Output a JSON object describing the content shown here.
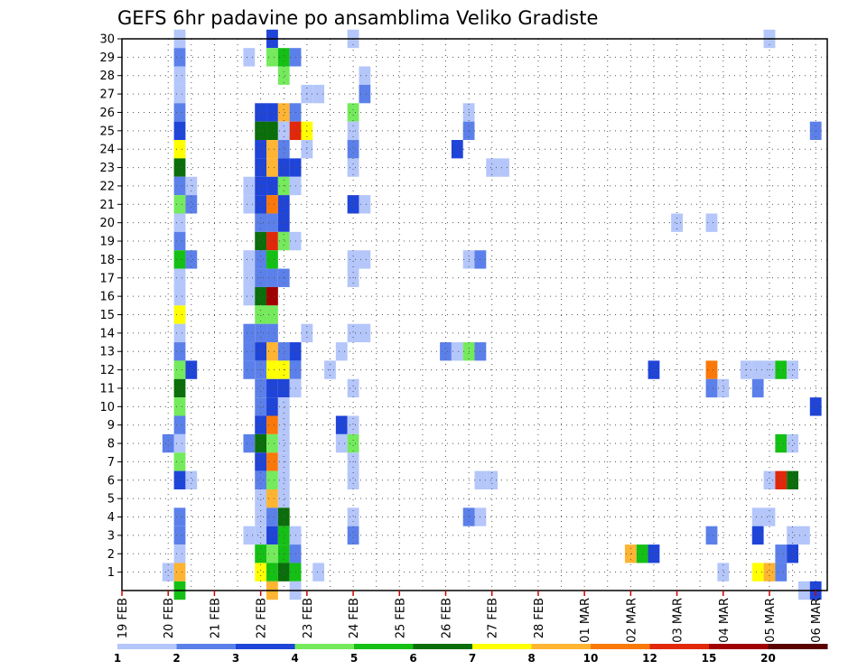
{
  "chart_data": {
    "type": "heatmap",
    "title": "GEFS 6hr padavine po ansamblima Veliko Gradiste",
    "x_tick_labels": [
      "19 FEB",
      "20 FEB",
      "21 FEB",
      "22 FEB",
      "23 FEB",
      "24 FEB",
      "25 FEB",
      "26 FEB",
      "27 FEB",
      "28 FEB",
      "01 MAR",
      "02 MAR",
      "03 MAR",
      "04 MAR",
      "05 MAR",
      "06 MAR"
    ],
    "x_range_days": [
      0,
      15.25
    ],
    "x_step_hours": 6,
    "y_tick_labels": [
      "1",
      "2",
      "3",
      "4",
      "5",
      "6",
      "7",
      "8",
      "9",
      "10",
      "11",
      "12",
      "13",
      "14",
      "15",
      "16",
      "17",
      "18",
      "19",
      "20",
      "21",
      "22",
      "23",
      "24",
      "25",
      "26",
      "27",
      "28",
      "29",
      "30"
    ],
    "y_range": [
      0,
      30
    ],
    "grid": true,
    "legend_placement": "bottom",
    "colorbar_labels": [
      "1",
      "2",
      "3",
      "4",
      "5",
      "6",
      "7",
      "8",
      "10",
      "12",
      "15",
      "20"
    ],
    "colorbar_colors": [
      "#b4c6fa",
      "#5c80ea",
      "#1f44d8",
      "#74ea5c",
      "#14c014",
      "#0a6e0a",
      "#ffff00",
      "#ffb432",
      "#fa780a",
      "#e1280a",
      "#a00000",
      "#5a0000"
    ],
    "cells": [
      [
        1.25,
        30,
        0
      ],
      [
        1.25,
        29,
        1
      ],
      [
        1.25,
        28,
        0
      ],
      [
        1.25,
        27,
        0
      ],
      [
        1.25,
        26,
        1
      ],
      [
        1.25,
        25,
        2
      ],
      [
        1.25,
        24,
        6
      ],
      [
        1.25,
        23,
        5
      ],
      [
        1.25,
        22,
        1
      ],
      [
        1.25,
        21,
        3
      ],
      [
        1.25,
        20,
        0
      ],
      [
        1.25,
        19,
        1
      ],
      [
        1.25,
        18,
        4
      ],
      [
        1.25,
        17,
        0
      ],
      [
        1.25,
        16,
        0
      ],
      [
        1.25,
        15,
        6
      ],
      [
        1.25,
        14,
        0
      ],
      [
        1.25,
        13,
        1
      ],
      [
        1.25,
        12,
        3
      ],
      [
        1.25,
        11,
        5
      ],
      [
        1.25,
        10,
        3
      ],
      [
        1.25,
        9,
        1
      ],
      [
        1.25,
        8,
        0
      ],
      [
        1.25,
        7,
        3
      ],
      [
        1.25,
        6,
        2
      ],
      [
        1.25,
        4,
        1
      ],
      [
        1.25,
        3,
        1
      ],
      [
        1.25,
        2,
        0
      ],
      [
        1.25,
        1,
        7
      ],
      [
        1.25,
        0,
        4
      ],
      [
        1.0,
        8,
        1
      ],
      [
        1.0,
        1,
        0
      ],
      [
        1.5,
        22,
        0
      ],
      [
        1.5,
        21,
        1
      ],
      [
        1.5,
        18,
        1
      ],
      [
        1.5,
        12,
        2
      ],
      [
        1.5,
        6,
        0
      ],
      [
        2.75,
        29,
        0
      ],
      [
        2.75,
        22,
        0
      ],
      [
        2.75,
        21,
        0
      ],
      [
        2.75,
        18,
        0
      ],
      [
        2.75,
        17,
        0
      ],
      [
        2.75,
        16,
        0
      ],
      [
        2.75,
        14,
        1
      ],
      [
        2.75,
        13,
        1
      ],
      [
        2.75,
        12,
        1
      ],
      [
        2.75,
        8,
        1
      ],
      [
        2.75,
        3,
        0
      ],
      [
        3.0,
        26,
        2
      ],
      [
        3.0,
        25,
        5
      ],
      [
        3.0,
        24,
        2
      ],
      [
        3.0,
        23,
        2
      ],
      [
        3.0,
        22,
        2
      ],
      [
        3.0,
        21,
        2
      ],
      [
        3.0,
        20,
        1
      ],
      [
        3.0,
        19,
        5
      ],
      [
        3.0,
        18,
        1
      ],
      [
        3.0,
        17,
        1
      ],
      [
        3.0,
        16,
        5
      ],
      [
        3.0,
        15,
        3
      ],
      [
        3.0,
        14,
        1
      ],
      [
        3.0,
        13,
        2
      ],
      [
        3.0,
        12,
        1
      ],
      [
        3.0,
        11,
        1
      ],
      [
        3.0,
        10,
        1
      ],
      [
        3.0,
        9,
        2
      ],
      [
        3.0,
        8,
        5
      ],
      [
        3.0,
        7,
        2
      ],
      [
        3.0,
        6,
        1
      ],
      [
        3.0,
        5,
        0
      ],
      [
        3.0,
        4,
        0
      ],
      [
        3.0,
        3,
        0
      ],
      [
        3.0,
        2,
        4
      ],
      [
        3.0,
        1,
        6
      ],
      [
        3.25,
        30,
        2
      ],
      [
        3.25,
        29,
        3
      ],
      [
        3.25,
        26,
        2
      ],
      [
        3.25,
        25,
        5
      ],
      [
        3.25,
        24,
        7
      ],
      [
        3.25,
        23,
        7
      ],
      [
        3.25,
        22,
        2
      ],
      [
        3.25,
        21,
        8
      ],
      [
        3.25,
        20,
        1
      ],
      [
        3.25,
        19,
        9
      ],
      [
        3.25,
        18,
        4
      ],
      [
        3.25,
        17,
        1
      ],
      [
        3.25,
        16,
        10
      ],
      [
        3.25,
        15,
        3
      ],
      [
        3.25,
        14,
        1
      ],
      [
        3.25,
        13,
        7
      ],
      [
        3.25,
        12,
        6
      ],
      [
        3.25,
        11,
        2
      ],
      [
        3.25,
        10,
        2
      ],
      [
        3.25,
        9,
        8
      ],
      [
        3.25,
        8,
        3
      ],
      [
        3.25,
        7,
        8
      ],
      [
        3.25,
        6,
        3
      ],
      [
        3.25,
        5,
        7
      ],
      [
        3.25,
        4,
        1
      ],
      [
        3.25,
        3,
        2
      ],
      [
        3.25,
        2,
        3
      ],
      [
        3.25,
        1,
        4
      ],
      [
        3.25,
        0,
        7
      ],
      [
        3.5,
        29,
        4
      ],
      [
        3.5,
        28,
        3
      ],
      [
        3.5,
        26,
        7
      ],
      [
        3.5,
        25,
        0
      ],
      [
        3.5,
        24,
        1
      ],
      [
        3.5,
        23,
        2
      ],
      [
        3.5,
        22,
        3
      ],
      [
        3.5,
        21,
        2
      ],
      [
        3.5,
        20,
        2
      ],
      [
        3.5,
        19,
        3
      ],
      [
        3.5,
        17,
        1
      ],
      [
        3.5,
        13,
        1
      ],
      [
        3.5,
        12,
        6
      ],
      [
        3.5,
        11,
        2
      ],
      [
        3.5,
        10,
        0
      ],
      [
        3.5,
        9,
        0
      ],
      [
        3.5,
        8,
        0
      ],
      [
        3.5,
        7,
        0
      ],
      [
        3.5,
        6,
        0
      ],
      [
        3.5,
        5,
        0
      ],
      [
        3.5,
        4,
        5
      ],
      [
        3.5,
        3,
        4
      ],
      [
        3.5,
        2,
        4
      ],
      [
        3.5,
        1,
        5
      ],
      [
        3.75,
        29,
        1
      ],
      [
        3.75,
        26,
        1
      ],
      [
        3.75,
        25,
        9
      ],
      [
        3.75,
        23,
        2
      ],
      [
        3.75,
        22,
        0
      ],
      [
        3.75,
        19,
        0
      ],
      [
        3.75,
        13,
        2
      ],
      [
        3.75,
        12,
        1
      ],
      [
        3.75,
        11,
        0
      ],
      [
        3.75,
        3,
        0
      ],
      [
        3.75,
        2,
        1
      ],
      [
        3.75,
        1,
        4
      ],
      [
        3.75,
        0,
        0
      ],
      [
        4.0,
        25,
        6
      ],
      [
        4.0,
        24,
        0
      ],
      [
        4.0,
        27,
        0
      ],
      [
        4.0,
        14,
        0
      ],
      [
        4.25,
        27,
        0
      ],
      [
        4.25,
        1,
        0
      ],
      [
        4.5,
        12,
        0
      ],
      [
        4.75,
        13,
        0
      ],
      [
        4.75,
        9,
        2
      ],
      [
        4.75,
        8,
        0
      ],
      [
        5.0,
        30,
        0
      ],
      [
        5.0,
        26,
        3
      ],
      [
        5.0,
        25,
        0
      ],
      [
        5.0,
        24,
        1
      ],
      [
        5.0,
        23,
        0
      ],
      [
        5.0,
        21,
        2
      ],
      [
        5.0,
        18,
        0
      ],
      [
        5.0,
        17,
        0
      ],
      [
        5.0,
        14,
        0
      ],
      [
        5.0,
        11,
        0
      ],
      [
        5.0,
        9,
        0
      ],
      [
        5.0,
        8,
        3
      ],
      [
        5.0,
        7,
        0
      ],
      [
        5.0,
        6,
        0
      ],
      [
        5.0,
        4,
        0
      ],
      [
        5.0,
        3,
        1
      ],
      [
        5.25,
        28,
        0
      ],
      [
        5.25,
        27,
        1
      ],
      [
        5.25,
        21,
        0
      ],
      [
        5.25,
        18,
        0
      ],
      [
        5.25,
        14,
        0
      ],
      [
        7.0,
        13,
        1
      ],
      [
        7.25,
        13,
        0
      ],
      [
        7.25,
        24,
        2
      ],
      [
        7.5,
        26,
        0
      ],
      [
        7.5,
        25,
        1
      ],
      [
        7.5,
        18,
        0
      ],
      [
        7.5,
        13,
        3
      ],
      [
        7.5,
        4,
        1
      ],
      [
        7.75,
        18,
        1
      ],
      [
        7.75,
        13,
        1
      ],
      [
        7.75,
        6,
        0
      ],
      [
        7.75,
        4,
        0
      ],
      [
        8.0,
        23,
        0
      ],
      [
        8.0,
        6,
        0
      ],
      [
        8.25,
        23,
        0
      ],
      [
        11.0,
        2,
        7
      ],
      [
        11.25,
        2,
        4
      ],
      [
        11.5,
        2,
        2
      ],
      [
        11.5,
        12,
        2
      ],
      [
        12.0,
        20,
        0
      ],
      [
        12.75,
        20,
        0
      ],
      [
        12.75,
        12,
        8
      ],
      [
        12.75,
        11,
        1
      ],
      [
        12.75,
        3,
        1
      ],
      [
        13.0,
        11,
        0
      ],
      [
        13.0,
        1,
        0
      ],
      [
        13.5,
        12,
        0
      ],
      [
        13.75,
        12,
        0
      ],
      [
        13.75,
        11,
        1
      ],
      [
        13.75,
        4,
        0
      ],
      [
        13.75,
        3,
        2
      ],
      [
        13.75,
        1,
        6
      ],
      [
        14.0,
        12,
        0
      ],
      [
        14.0,
        4,
        0
      ],
      [
        14.0,
        1,
        7
      ],
      [
        14.0,
        6,
        0
      ],
      [
        14.0,
        30,
        0
      ],
      [
        14.25,
        12,
        4
      ],
      [
        14.25,
        8,
        4
      ],
      [
        14.25,
        6,
        9
      ],
      [
        14.25,
        2,
        1
      ],
      [
        14.25,
        1,
        1
      ],
      [
        14.5,
        12,
        0
      ],
      [
        14.5,
        8,
        0
      ],
      [
        14.5,
        6,
        5
      ],
      [
        14.5,
        3,
        0
      ],
      [
        14.5,
        2,
        2
      ],
      [
        14.75,
        3,
        0
      ],
      [
        14.75,
        0,
        0
      ],
      [
        15.0,
        25,
        1
      ],
      [
        15.0,
        10,
        2
      ],
      [
        15.0,
        0,
        2
      ]
    ]
  }
}
